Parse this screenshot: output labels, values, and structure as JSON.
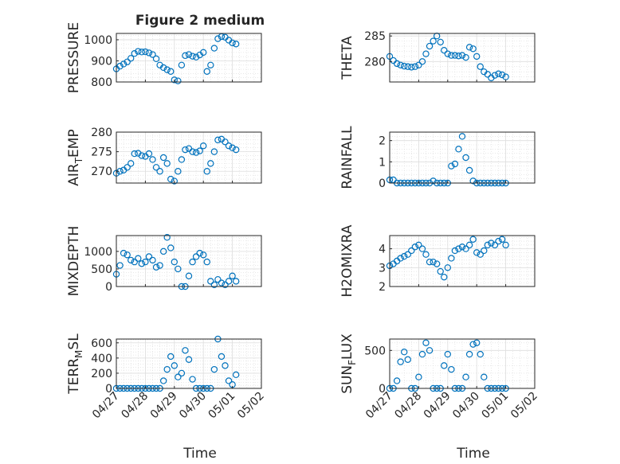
{
  "title": "Figure 2 medium",
  "x_ticks": [
    "04/27",
    "04/28",
    "04/29",
    "04/30",
    "05/01",
    "05/02"
  ],
  "xlabel": "Time",
  "marker_color": "#0072BD",
  "chart_data": [
    {
      "type": "scatter",
      "ylabel": "PRESSURE",
      "ylim": [
        800,
        1030
      ],
      "yticks": [
        800,
        900,
        1000
      ],
      "x": [
        "04/27 00:00",
        "04/27 03:00",
        "04/27 06:00",
        "04/27 09:00",
        "04/27 12:00",
        "04/27 15:00",
        "04/27 18:00",
        "04/27 21:00",
        "04/28 00:00",
        "04/28 03:00",
        "04/28 06:00",
        "04/28 09:00",
        "04/28 12:00",
        "04/28 15:00",
        "04/28 18:00",
        "04/28 21:00",
        "04/29 00:00",
        "04/29 03:00",
        "04/29 06:00",
        "04/29 09:00",
        "04/29 12:00",
        "04/29 15:00",
        "04/29 18:00",
        "04/29 21:00",
        "04/30 00:00",
        "04/30 03:00",
        "04/30 06:00",
        "04/30 09:00",
        "04/30 12:00",
        "04/30 15:00",
        "04/30 18:00",
        "04/30 21:00",
        "05/01 00:00",
        "05/01 03:00"
      ],
      "y": [
        862,
        875,
        885,
        895,
        912,
        935,
        945,
        942,
        943,
        938,
        930,
        910,
        880,
        868,
        858,
        850,
        810,
        805,
        880,
        925,
        930,
        922,
        918,
        928,
        940,
        850,
        880,
        960,
        1005,
        1015,
        1012,
        998,
        985,
        980
      ]
    },
    {
      "type": "scatter",
      "ylabel": "THETA",
      "ylim": [
        276,
        285.5
      ],
      "yticks": [
        280,
        285
      ],
      "x": [
        "04/27 00:00",
        "04/27 03:00",
        "04/27 06:00",
        "04/27 09:00",
        "04/27 12:00",
        "04/27 15:00",
        "04/27 18:00",
        "04/27 21:00",
        "04/28 00:00",
        "04/28 03:00",
        "04/28 06:00",
        "04/28 09:00",
        "04/28 12:00",
        "04/28 15:00",
        "04/28 18:00",
        "04/28 21:00",
        "04/29 00:00",
        "04/29 03:00",
        "04/29 06:00",
        "04/29 09:00",
        "04/29 12:00",
        "04/29 15:00",
        "04/29 18:00",
        "04/29 21:00",
        "04/30 00:00",
        "04/30 03:00",
        "04/30 06:00",
        "04/30 09:00",
        "04/30 12:00",
        "04/30 15:00",
        "04/30 18:00",
        "04/30 21:00",
        "05/01 00:00"
      ],
      "y": [
        281,
        280.2,
        279.6,
        279.3,
        279.1,
        279.0,
        278.9,
        279.0,
        279.3,
        280.0,
        281.5,
        283.0,
        284.0,
        285.0,
        283.8,
        282.2,
        281.5,
        281.2,
        281.2,
        281.1,
        281.2,
        280.8,
        282.8,
        282.5,
        281.0,
        279.0,
        278.0,
        277.5,
        276.8,
        277.3,
        277.6,
        277.4,
        277.0
      ]
    },
    {
      "type": "scatter",
      "ylabel": "AIR_TEMP",
      "ylabel_base": "AIR",
      "ylabel_sub": "T",
      "ylabel_rest": "EMP",
      "ylim": [
        267,
        280
      ],
      "yticks": [
        270,
        275,
        280
      ],
      "x": [
        "04/27 00:00",
        "04/27 03:00",
        "04/27 06:00",
        "04/27 09:00",
        "04/27 12:00",
        "04/27 15:00",
        "04/27 18:00",
        "04/27 21:00",
        "04/28 00:00",
        "04/28 03:00",
        "04/28 06:00",
        "04/28 09:00",
        "04/28 12:00",
        "04/28 15:00",
        "04/28 18:00",
        "04/28 21:00",
        "04/29 00:00",
        "04/29 03:00",
        "04/29 06:00",
        "04/29 09:00",
        "04/29 12:00",
        "04/29 15:00",
        "04/29 18:00",
        "04/29 21:00",
        "04/30 00:00",
        "04/30 03:00",
        "04/30 06:00",
        "04/30 09:00",
        "04/30 12:00",
        "04/30 15:00",
        "04/30 18:00",
        "04/30 21:00",
        "05/01 00:00",
        "05/01 03:00"
      ],
      "y": [
        269.5,
        270,
        270.3,
        271,
        272,
        274.5,
        274.6,
        274,
        273.8,
        274.5,
        273,
        271,
        270,
        273.5,
        272,
        268,
        267.5,
        270,
        273,
        275.5,
        275.8,
        275,
        274.8,
        275.2,
        276.5,
        270,
        272,
        275,
        278,
        278.2,
        277.5,
        276.5,
        276,
        275.5
      ]
    },
    {
      "type": "scatter",
      "ylabel": "RAINFALL",
      "ylim": [
        0,
        2.4
      ],
      "yticks": [
        0,
        1,
        2
      ],
      "x": [
        "04/27 00:00",
        "04/27 03:00",
        "04/27 06:00",
        "04/27 09:00",
        "04/27 12:00",
        "04/27 15:00",
        "04/27 18:00",
        "04/27 21:00",
        "04/28 00:00",
        "04/28 03:00",
        "04/28 06:00",
        "04/28 09:00",
        "04/28 12:00",
        "04/28 15:00",
        "04/28 18:00",
        "04/28 21:00",
        "04/29 00:00",
        "04/29 03:00",
        "04/29 06:00",
        "04/29 09:00",
        "04/29 12:00",
        "04/29 15:00",
        "04/29 18:00",
        "04/29 21:00",
        "04/30 00:00",
        "04/30 03:00",
        "04/30 06:00",
        "04/30 09:00",
        "04/30 12:00",
        "04/30 15:00",
        "04/30 18:00",
        "04/30 21:00",
        "05/01 00:00"
      ],
      "y": [
        0.15,
        0.15,
        0,
        0,
        0,
        0,
        0,
        0,
        0,
        0,
        0,
        0,
        0.1,
        0,
        0,
        0,
        0,
        0.8,
        0.9,
        1.6,
        2.2,
        1.2,
        0.6,
        0.1,
        0,
        0,
        0,
        0,
        0,
        0,
        0,
        0,
        0
      ]
    },
    {
      "type": "scatter",
      "ylabel": "MIXDEPTH",
      "ylim": [
        0,
        1450
      ],
      "yticks": [
        0,
        500,
        1000
      ],
      "x": [
        "04/27 00:00",
        "04/27 03:00",
        "04/27 06:00",
        "04/27 09:00",
        "04/27 12:00",
        "04/27 15:00",
        "04/27 18:00",
        "04/27 21:00",
        "04/28 00:00",
        "04/28 03:00",
        "04/28 06:00",
        "04/28 09:00",
        "04/28 12:00",
        "04/28 15:00",
        "04/28 18:00",
        "04/28 21:00",
        "04/29 00:00",
        "04/29 03:00",
        "04/29 06:00",
        "04/29 09:00",
        "04/29 12:00",
        "04/29 15:00",
        "04/29 18:00",
        "04/29 21:00",
        "04/30 00:00",
        "04/30 03:00",
        "04/30 06:00",
        "04/30 09:00",
        "04/30 12:00",
        "04/30 15:00",
        "04/30 18:00",
        "04/30 21:00",
        "05/01 00:00",
        "05/01 03:00"
      ],
      "y": [
        350,
        600,
        950,
        900,
        750,
        700,
        800,
        650,
        700,
        850,
        750,
        550,
        600,
        1000,
        1400,
        1100,
        700,
        500,
        0,
        0,
        300,
        700,
        850,
        950,
        900,
        700,
        150,
        50,
        200,
        100,
        50,
        150,
        300,
        150
      ]
    },
    {
      "type": "scatter",
      "ylabel": "H2OMIXRA",
      "ylim": [
        2,
        4.7
      ],
      "yticks": [
        2,
        3,
        4
      ],
      "x": [
        "04/27 00:00",
        "04/27 03:00",
        "04/27 06:00",
        "04/27 09:00",
        "04/27 12:00",
        "04/27 15:00",
        "04/27 18:00",
        "04/27 21:00",
        "04/28 00:00",
        "04/28 03:00",
        "04/28 06:00",
        "04/28 09:00",
        "04/28 12:00",
        "04/28 15:00",
        "04/28 18:00",
        "04/28 21:00",
        "04/29 00:00",
        "04/29 03:00",
        "04/29 06:00",
        "04/29 09:00",
        "04/29 12:00",
        "04/29 15:00",
        "04/29 18:00",
        "04/29 21:00",
        "04/30 00:00",
        "04/30 03:00",
        "04/30 06:00",
        "04/30 09:00",
        "04/30 12:00",
        "04/30 15:00",
        "04/30 18:00",
        "04/30 21:00",
        "05/01 00:00"
      ],
      "y": [
        3.1,
        3.2,
        3.35,
        3.5,
        3.6,
        3.7,
        3.9,
        4.1,
        4.2,
        4.0,
        3.7,
        3.3,
        3.3,
        3.2,
        2.8,
        2.5,
        3.0,
        3.5,
        3.9,
        4.0,
        4.1,
        4.0,
        4.2,
        4.5,
        3.8,
        3.7,
        3.9,
        4.2,
        4.3,
        4.2,
        4.4,
        4.5,
        4.2
      ]
    },
    {
      "type": "scatter",
      "ylabel": "TERR_MSL",
      "ylabel_base": "TERR",
      "ylabel_sub": "M",
      "ylabel_rest": "SL",
      "ylim": [
        0,
        650
      ],
      "yticks": [
        0,
        200,
        400,
        600
      ],
      "x": [
        "04/27 00:00",
        "04/27 03:00",
        "04/27 06:00",
        "04/27 09:00",
        "04/27 12:00",
        "04/27 15:00",
        "04/27 18:00",
        "04/27 21:00",
        "04/28 00:00",
        "04/28 03:00",
        "04/28 06:00",
        "04/28 09:00",
        "04/28 12:00",
        "04/28 15:00",
        "04/28 18:00",
        "04/28 21:00",
        "04/29 00:00",
        "04/29 03:00",
        "04/29 06:00",
        "04/29 09:00",
        "04/29 12:00",
        "04/29 15:00",
        "04/29 18:00",
        "04/29 21:00",
        "04/30 00:00",
        "04/30 03:00",
        "04/30 06:00",
        "04/30 09:00",
        "04/30 12:00",
        "04/30 15:00",
        "04/30 18:00",
        "04/30 21:00",
        "05/01 00:00",
        "05/01 03:00"
      ],
      "y": [
        0,
        0,
        0,
        0,
        0,
        0,
        0,
        0,
        0,
        0,
        0,
        0,
        0,
        100,
        250,
        420,
        300,
        150,
        200,
        500,
        380,
        120,
        0,
        0,
        0,
        0,
        0,
        250,
        650,
        420,
        300,
        100,
        50,
        180
      ]
    },
    {
      "type": "scatter",
      "ylabel": "SUN_FLUX",
      "ylabel_base": "SUN",
      "ylabel_sub": "F",
      "ylabel_rest": "LUX",
      "ylim": [
        0,
        650
      ],
      "yticks": [
        0,
        500
      ],
      "x": [
        "04/27 00:00",
        "04/27 03:00",
        "04/27 06:00",
        "04/27 09:00",
        "04/27 12:00",
        "04/27 15:00",
        "04/27 18:00",
        "04/27 21:00",
        "04/28 00:00",
        "04/28 03:00",
        "04/28 06:00",
        "04/28 09:00",
        "04/28 12:00",
        "04/28 15:00",
        "04/28 18:00",
        "04/28 21:00",
        "04/29 00:00",
        "04/29 03:00",
        "04/29 06:00",
        "04/29 09:00",
        "04/29 12:00",
        "04/29 15:00",
        "04/29 18:00",
        "04/29 21:00",
        "04/30 00:00",
        "04/30 03:00",
        "04/30 06:00",
        "04/30 09:00",
        "04/30 12:00",
        "04/30 15:00",
        "04/30 18:00",
        "04/30 21:00",
        "05/01 00:00"
      ],
      "y": [
        0,
        0,
        100,
        350,
        480,
        380,
        0,
        0,
        150,
        450,
        600,
        500,
        0,
        0,
        0,
        300,
        450,
        250,
        0,
        0,
        0,
        150,
        450,
        580,
        600,
        450,
        150,
        0,
        0,
        0,
        0,
        0,
        0
      ]
    }
  ]
}
